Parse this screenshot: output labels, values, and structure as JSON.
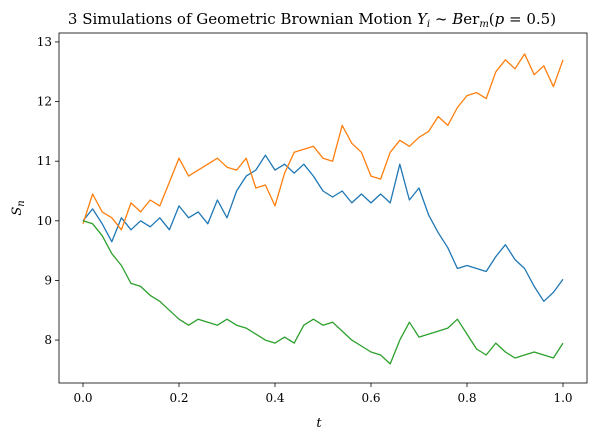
{
  "chart_data": {
    "type": "line",
    "title": "3 Simulations of Geometric Brownian Motion Y_i ~ Ber_m(p = 0.5)",
    "xlabel": "t",
    "ylabel": "S_n",
    "xlim": [
      -0.05,
      1.05
    ],
    "ylim": [
      7.28,
      13.15
    ],
    "xticks": [
      0.0,
      0.2,
      0.4,
      0.6,
      0.8,
      1.0
    ],
    "yticks": [
      8,
      9,
      10,
      11,
      12,
      13
    ],
    "grid": false,
    "legend": "none",
    "series": [
      {
        "color": "#1f77b4",
        "x": [
          0.0,
          0.02,
          0.04,
          0.06,
          0.08,
          0.1,
          0.12,
          0.14,
          0.16,
          0.18,
          0.2,
          0.22,
          0.24,
          0.26,
          0.28,
          0.3,
          0.32,
          0.34,
          0.36,
          0.38,
          0.4,
          0.42,
          0.44,
          0.46,
          0.48,
          0.5,
          0.52,
          0.54,
          0.56,
          0.58,
          0.6,
          0.62,
          0.64,
          0.66,
          0.68,
          0.7,
          0.72,
          0.74,
          0.76,
          0.78,
          0.8,
          0.82,
          0.84,
          0.86,
          0.88,
          0.9,
          0.92,
          0.94,
          0.96,
          0.98,
          1.0
        ],
        "y": [
          10.0,
          10.2,
          9.95,
          9.65,
          10.05,
          9.85,
          10.0,
          9.9,
          10.05,
          9.85,
          10.25,
          10.05,
          10.15,
          9.95,
          10.35,
          10.05,
          10.5,
          10.75,
          10.85,
          11.1,
          10.85,
          10.95,
          10.8,
          10.95,
          10.75,
          10.5,
          10.4,
          10.5,
          10.3,
          10.45,
          10.3,
          10.45,
          10.3,
          10.95,
          10.35,
          10.55,
          10.1,
          9.8,
          9.55,
          9.2,
          9.25,
          9.2,
          9.15,
          9.4,
          9.6,
          9.35,
          9.2,
          8.9,
          8.65,
          8.8,
          9.02
        ]
      },
      {
        "color": "#ff7f0e",
        "x": [
          0.0,
          0.02,
          0.04,
          0.06,
          0.08,
          0.1,
          0.12,
          0.14,
          0.16,
          0.18,
          0.2,
          0.22,
          0.24,
          0.26,
          0.28,
          0.3,
          0.32,
          0.34,
          0.36,
          0.38,
          0.4,
          0.42,
          0.44,
          0.46,
          0.48,
          0.5,
          0.52,
          0.54,
          0.56,
          0.58,
          0.6,
          0.62,
          0.64,
          0.66,
          0.68,
          0.7,
          0.72,
          0.74,
          0.76,
          0.78,
          0.8,
          0.82,
          0.84,
          0.86,
          0.88,
          0.9,
          0.92,
          0.94,
          0.96,
          0.98,
          1.0
        ],
        "y": [
          9.95,
          10.45,
          10.15,
          10.05,
          9.85,
          10.3,
          10.15,
          10.35,
          10.25,
          10.65,
          11.05,
          10.75,
          10.85,
          10.95,
          11.05,
          10.9,
          10.85,
          11.05,
          10.55,
          10.6,
          10.25,
          10.8,
          11.15,
          11.2,
          11.25,
          11.05,
          11.0,
          11.6,
          11.3,
          11.15,
          10.75,
          10.7,
          11.15,
          11.35,
          11.25,
          11.4,
          11.5,
          11.75,
          11.6,
          11.9,
          12.1,
          12.15,
          12.05,
          12.5,
          12.7,
          12.55,
          12.8,
          12.45,
          12.6,
          12.25,
          12.7
        ]
      },
      {
        "color": "#2ca02c",
        "x": [
          0.0,
          0.02,
          0.04,
          0.06,
          0.08,
          0.1,
          0.12,
          0.14,
          0.16,
          0.18,
          0.2,
          0.22,
          0.24,
          0.26,
          0.28,
          0.3,
          0.32,
          0.34,
          0.36,
          0.38,
          0.4,
          0.42,
          0.44,
          0.46,
          0.48,
          0.5,
          0.52,
          0.54,
          0.56,
          0.58,
          0.6,
          0.62,
          0.64,
          0.66,
          0.68,
          0.7,
          0.72,
          0.74,
          0.76,
          0.78,
          0.8,
          0.82,
          0.84,
          0.86,
          0.88,
          0.9,
          0.92,
          0.94,
          0.96,
          0.98,
          1.0
        ],
        "y": [
          10.0,
          9.95,
          9.75,
          9.45,
          9.25,
          8.95,
          8.9,
          8.75,
          8.65,
          8.5,
          8.35,
          8.25,
          8.35,
          8.3,
          8.25,
          8.35,
          8.25,
          8.2,
          8.1,
          8.0,
          7.95,
          8.05,
          7.95,
          8.25,
          8.35,
          8.25,
          8.3,
          8.15,
          8.0,
          7.9,
          7.8,
          7.75,
          7.6,
          8.0,
          8.3,
          8.05,
          8.1,
          8.15,
          8.2,
          8.35,
          8.1,
          7.85,
          7.75,
          7.95,
          7.8,
          7.7,
          7.75,
          7.8,
          7.75,
          7.7,
          7.95
        ]
      }
    ]
  }
}
